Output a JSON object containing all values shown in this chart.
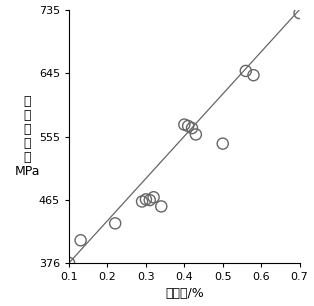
{
  "title": "",
  "xlabel": "碳当量/%",
  "ylabel_lines": [
    "抗",
    "拉",
    "强",
    "度",
    "／",
    "MPa"
  ],
  "xlim": [
    0.1,
    0.7
  ],
  "ylim": [
    376,
    735
  ],
  "xticks": [
    0.1,
    0.2,
    0.3,
    0.4,
    0.5,
    0.6,
    0.7
  ],
  "yticks": [
    376,
    465,
    555,
    645,
    735
  ],
  "scatter_x": [
    0.1,
    0.13,
    0.22,
    0.29,
    0.3,
    0.31,
    0.32,
    0.34,
    0.4,
    0.41,
    0.42,
    0.43,
    0.5,
    0.56,
    0.58,
    0.7
  ],
  "scatter_y": [
    376,
    408,
    432,
    463,
    466,
    465,
    469,
    456,
    572,
    570,
    567,
    558,
    545,
    648,
    642,
    730
  ],
  "line_x": [
    0.1,
    0.7
  ],
  "line_y": [
    376,
    735
  ],
  "marker_size": 8,
  "line_color": "#666666",
  "marker_facecolor": "none",
  "marker_edge_color": "#666666",
  "marker_linewidth": 1.0,
  "background_color": "#ffffff",
  "tick_fontsize": 8,
  "label_fontsize": 9
}
